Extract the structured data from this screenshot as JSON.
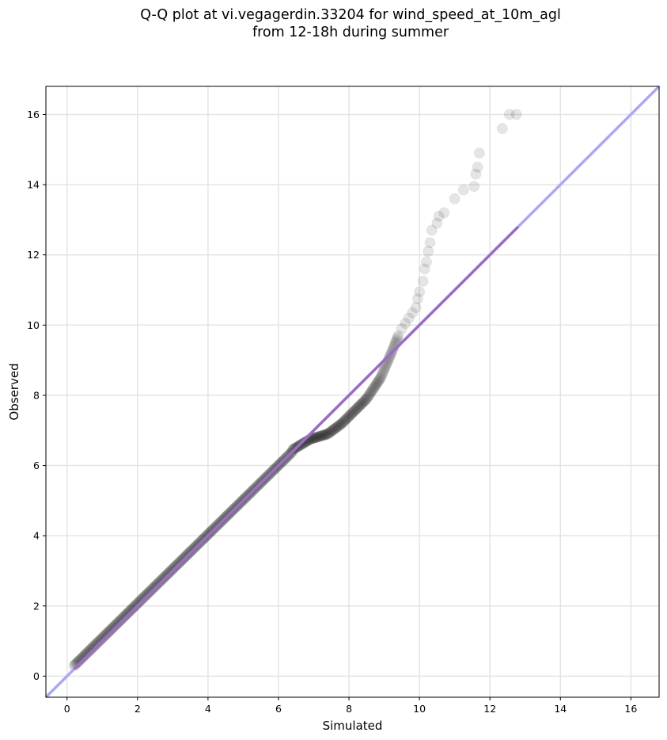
{
  "chart_data": {
    "type": "scatter",
    "title_lines": [
      "Q-Q plot at vi.vegagerdin.33204 for wind_speed_at_10m_agl",
      "from 12-18h during summer"
    ],
    "xlabel": "Simulated",
    "ylabel": "Observed",
    "xlim": [
      -0.6,
      16.8
    ],
    "ylim": [
      -0.6,
      16.8
    ],
    "xticks": [
      0,
      2,
      4,
      6,
      8,
      10,
      12,
      14,
      16
    ],
    "yticks": [
      0,
      2,
      4,
      6,
      8,
      10,
      12,
      14,
      16
    ],
    "grid": true,
    "reference_line": {
      "from": [
        -0.6,
        -0.6
      ],
      "to": [
        16.8,
        16.8
      ],
      "color": "#a9a9f5"
    },
    "fit_line": {
      "from": [
        0.2,
        0.2
      ],
      "to": [
        12.8,
        12.8
      ],
      "color": "#9b5fc0"
    },
    "series": [
      {
        "point_color": "#000000",
        "segments": [
          {
            "x_start": 0.2,
            "x_end": 6.4,
            "count": 240,
            "curve": [
              [
                0.2,
                0.3
              ],
              [
                6.4,
                6.4
              ]
            ]
          },
          {
            "x_start": 6.4,
            "x_end": 9.4,
            "count": 130,
            "curve": [
              [
                6.4,
                6.45
              ],
              [
                6.9,
                6.75
              ],
              [
                7.4,
                6.9
              ],
              [
                7.8,
                7.2
              ],
              [
                8.2,
                7.6
              ],
              [
                8.5,
                7.9
              ],
              [
                8.9,
                8.5
              ],
              [
                9.2,
                9.2
              ],
              [
                9.4,
                9.7
              ]
            ]
          }
        ],
        "tail_points": [
          [
            9.5,
            9.9
          ],
          [
            9.6,
            10.05
          ],
          [
            9.7,
            10.2
          ],
          [
            9.8,
            10.35
          ],
          [
            9.9,
            10.5
          ],
          [
            9.95,
            10.75
          ],
          [
            10.0,
            10.95
          ],
          [
            10.1,
            11.25
          ],
          [
            10.15,
            11.6
          ],
          [
            10.2,
            11.8
          ],
          [
            10.25,
            12.1
          ],
          [
            10.3,
            12.35
          ],
          [
            10.35,
            12.7
          ],
          [
            10.5,
            12.9
          ],
          [
            10.55,
            13.1
          ],
          [
            10.7,
            13.2
          ],
          [
            11.0,
            13.6
          ],
          [
            11.25,
            13.85
          ],
          [
            11.55,
            13.95
          ],
          [
            11.6,
            14.3
          ],
          [
            11.65,
            14.5
          ],
          [
            11.7,
            14.9
          ],
          [
            12.35,
            15.6
          ],
          [
            12.55,
            16.0
          ],
          [
            12.75,
            16.0
          ]
        ]
      }
    ]
  }
}
